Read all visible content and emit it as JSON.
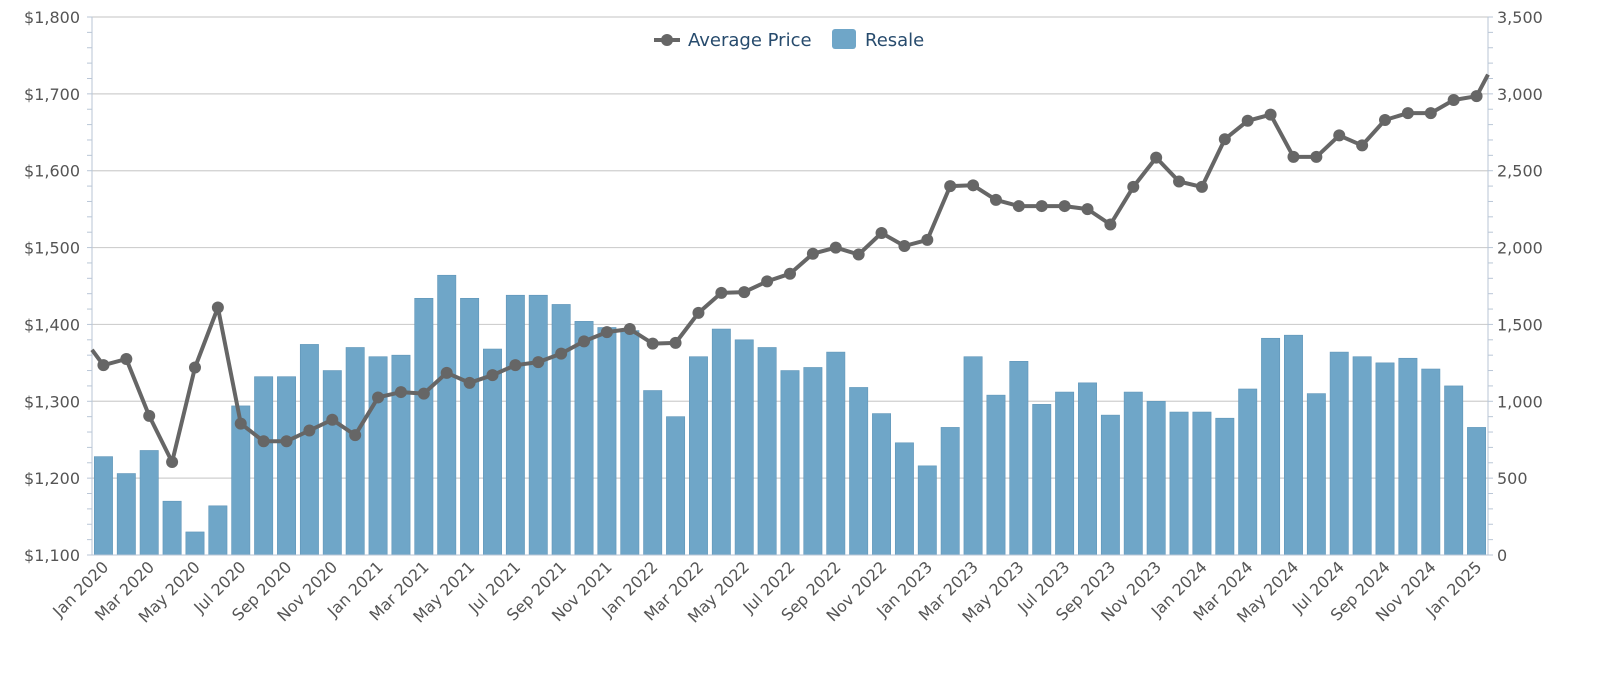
{
  "chart_data": {
    "type": "bar+line",
    "title": "",
    "legend": {
      "position": "top-center",
      "items": [
        {
          "label": "Average Price",
          "kind": "line",
          "color": "#666666",
          "icon": "line-marker-icon"
        },
        {
          "label": "Resale",
          "kind": "bar",
          "color": "#6fa6c8",
          "icon": "bar-swatch-icon"
        }
      ]
    },
    "left_axis": {
      "min": 1100,
      "max": 1800,
      "ticks": [
        1100,
        1200,
        1300,
        1400,
        1500,
        1600,
        1700,
        1800
      ],
      "tick_labels": [
        "$1,100",
        "$1,200",
        "$1,300",
        "$1,400",
        "$1,500",
        "$1,600",
        "$1,700",
        "$1,800"
      ]
    },
    "right_axis": {
      "min": 0,
      "max": 3500,
      "ticks": [
        0,
        500,
        1000,
        1500,
        2000,
        2500,
        3000,
        3500
      ],
      "tick_labels": [
        "0",
        "500",
        "1,000",
        "1,500",
        "2,000",
        "2,500",
        "3,000",
        "3,500"
      ]
    },
    "grid": true,
    "x_labels": [
      "Jan 2020",
      "Mar 2020",
      "May 2020",
      "Jul 2020",
      "Sep 2020",
      "Nov 2020",
      "Jan 2021",
      "Mar 2021",
      "May 2021",
      "Jul 2021",
      "Sep 2021",
      "Nov 2021",
      "Jan 2022",
      "Mar 2022",
      "May 2022",
      "Jul 2022",
      "Sep 2022",
      "Nov 2022",
      "Jan 2023",
      "Mar 2023",
      "May 2023",
      "Jul 2023",
      "Sep 2023",
      "Nov 2023",
      "Jan 2024",
      "Mar 2024",
      "May 2024",
      "Jul 2024",
      "Sep 2024",
      "Nov 2024",
      "Jan 2025"
    ],
    "series": [
      {
        "name": "Resale",
        "type": "bar",
        "axis": "right",
        "color": "#6fa6c8",
        "values": [
          640,
          530,
          680,
          350,
          150,
          320,
          970,
          1160,
          1160,
          1370,
          1200,
          1350,
          1290,
          1300,
          1670,
          1820,
          1670,
          1340,
          1690,
          1690,
          1630,
          1520,
          1480,
          1460,
          1070,
          900,
          1290,
          1470,
          1400,
          1350,
          1200,
          1220,
          1320,
          1090,
          920,
          730,
          580,
          830,
          1290,
          1040,
          1260,
          980,
          1060,
          1120,
          910,
          1060,
          1000,
          930,
          930,
          890,
          1080,
          1410,
          1430,
          1050,
          1320,
          1290,
          1250,
          1280,
          1210,
          1100,
          830
        ]
      },
      {
        "name": "Average Price",
        "type": "line",
        "axis": "left",
        "color": "#666666",
        "values": [
          1347,
          1355,
          1281,
          1221,
          1344,
          1422,
          1271,
          1248,
          1248,
          1262,
          1276,
          1256,
          1305,
          1312,
          1310,
          1337,
          1324,
          1334,
          1347,
          1351,
          1362,
          1378,
          1390,
          1394,
          1375,
          1376,
          1415,
          1441,
          1442,
          1456,
          1466,
          1492,
          1500,
          1491,
          1519,
          1502,
          1510,
          1580,
          1581,
          1562,
          1554,
          1554,
          1554,
          1550,
          1530,
          1579,
          1617,
          1586,
          1579,
          1641,
          1665,
          1673,
          1618,
          1618,
          1646,
          1633,
          1666,
          1675,
          1675,
          1692,
          1697
        ]
      }
    ],
    "line_edges": {
      "start_value": 1367,
      "end_value": 1725
    }
  }
}
